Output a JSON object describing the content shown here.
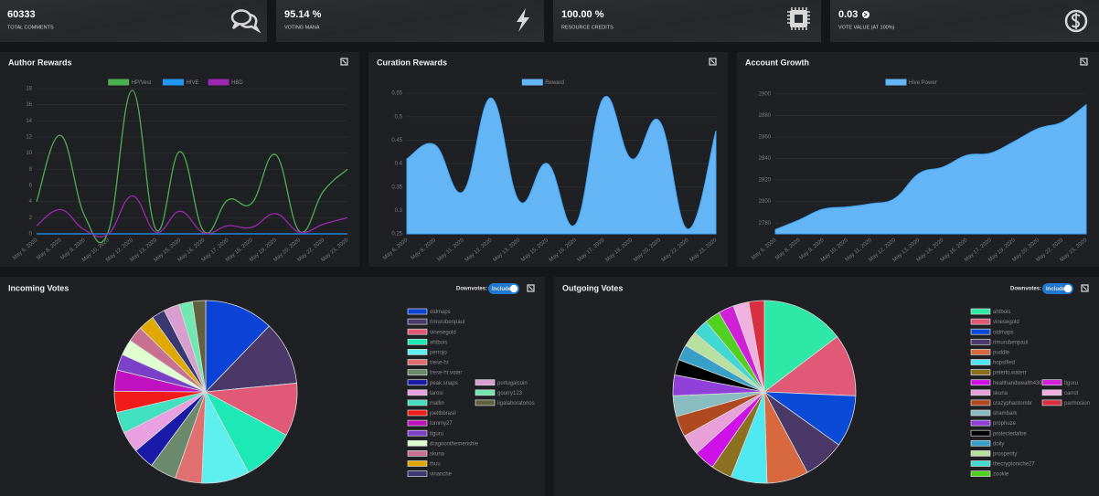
{
  "stats": [
    {
      "value": "60333",
      "label": "TOTAL COMMENTS"
    },
    {
      "value": "95.14 %",
      "label": "VOTING MANA"
    },
    {
      "value": "100.00 %",
      "label": "RESOURCE CREDITS"
    },
    {
      "value": "0.03",
      "label": "VOTE VALUE (AT 100%)"
    }
  ],
  "chart_data": [
    {
      "type": "line",
      "title": "Author Rewards",
      "categories": [
        "May 6, 2020",
        "May 8, 2020",
        "May 9, 2020",
        "May 10, 2020",
        "May 12, 2020",
        "May 13, 2020",
        "May 15, 2020",
        "May 16, 2020",
        "May 17, 2020",
        "May 18, 2020",
        "May 19, 2020",
        "May 20, 2020",
        "May 22, 2020",
        "May 23, 2020"
      ],
      "series": [
        {
          "name": "HP/Vest",
          "color": "#4caf50",
          "values": [
            4,
            12.2,
            2.3,
            0.3,
            17.8,
            0.5,
            10.2,
            0.3,
            4.2,
            3.8,
            9.8,
            0.3,
            5.3,
            8
          ]
        },
        {
          "name": "HIVE",
          "color": "#2196f3",
          "values": [
            0,
            0,
            0,
            0,
            0,
            0,
            0,
            0,
            0,
            0,
            0,
            0,
            0,
            0
          ]
        },
        {
          "name": "HBD",
          "color": "#9c27b0",
          "values": [
            1,
            3,
            0.5,
            0,
            4.7,
            0.2,
            2.8,
            0.1,
            1,
            0.8,
            2.5,
            0.2,
            1.2,
            2
          ]
        }
      ],
      "ylim": [
        0,
        18
      ],
      "yticks": [
        0,
        2,
        4,
        6,
        8,
        10,
        12,
        14,
        16,
        18
      ],
      "grid": true
    },
    {
      "type": "area",
      "title": "Curation Rewards",
      "categories": [
        "May 6, 2020",
        "May 8, 2020",
        "May 11, 2020",
        "May 12, 2020",
        "May 13, 2020",
        "May 15, 2020",
        "May 16, 2020",
        "May 17, 2020",
        "May 18, 2020",
        "May 20, 2020",
        "May 22, 2020",
        "May 23, 2020"
      ],
      "series": [
        {
          "name": "Reward",
          "color": "#64b5f6",
          "values": [
            0.41,
            0.44,
            0.34,
            0.54,
            0.32,
            0.4,
            0.27,
            0.54,
            0.41,
            0.49,
            0.26,
            0.47
          ]
        }
      ],
      "ylim": [
        0.25,
        0.56
      ],
      "yticks": [
        0.25,
        0.3,
        0.35,
        0.4,
        0.45,
        0.5,
        0.55
      ],
      "grid": true
    },
    {
      "type": "area",
      "title": "Account Growth",
      "categories": [
        "May 6, 2020",
        "May 8, 2020",
        "May 9, 2020",
        "May 10, 2020",
        "May 11, 2020",
        "May 12, 2020",
        "May 13, 2020",
        "May 14, 2020",
        "May 16, 2020",
        "May 17, 2020",
        "May 19, 2020",
        "May 20, 2020",
        "May 22, 2020",
        "May 23, 2020"
      ],
      "series": [
        {
          "name": "Hive Power",
          "color": "#64b5f6",
          "values": [
            2774,
            2783,
            2793,
            2795,
            2798,
            2803,
            2826,
            2832,
            2843,
            2845,
            2856,
            2868,
            2874,
            2890
          ]
        }
      ],
      "ylim": [
        2770,
        2905
      ],
      "yticks": [
        2780,
        2800,
        2820,
        2840,
        2860,
        2880,
        2900
      ],
      "grid": true
    },
    {
      "type": "pie",
      "title": "Incoming Votes",
      "toggle_label": "Downvotes:",
      "toggle_value": "Include",
      "categories": [
        "oldmaps",
        "rimurubenpaul",
        "vinesegold",
        "ahtbois",
        "perrojo",
        "trese-hr",
        "trese-hr.voter",
        "peak.snaps",
        "tarosi",
        "mallin",
        "joeltbbrasil",
        "tommy27",
        "ltguru",
        "dragoonthemenshie",
        "skuna",
        "thuu",
        "vinanche",
        "portugalcoin",
        "gourry123",
        "ligalaboratorios"
      ],
      "values": [
        13,
        12,
        10,
        10,
        9,
        5,
        5,
        4,
        4,
        4,
        4,
        4,
        3,
        3,
        3,
        3,
        2.5,
        3,
        2.5,
        2.5
      ],
      "colors": [
        "#0a43d6",
        "#4a3868",
        "#e05a78",
        "#1de9b6",
        "#5ef0ee",
        "#e07070",
        "#6b8a6b",
        "#1a1aa8",
        "#e8a0e0",
        "#40e0c0",
        "#f21b1b",
        "#c010c0",
        "#7a40c8",
        "#e0ffd0",
        "#c87090",
        "#e0a800",
        "#3a3870",
        "#d89ed0",
        "#70e8b0",
        "#606040"
      ]
    },
    {
      "type": "pie",
      "title": "Outgoing Votes",
      "toggle_label": "Downvotes:",
      "toggle_value": "Include",
      "categories": [
        "ahtbois",
        "vinesegold",
        "oldmaps",
        "rimurubenpaul",
        "puddle",
        "hopsified",
        "peterlo.waterr",
        "healthandwealth4304",
        "skuna",
        "crazyphantombr",
        "shambark",
        "prophuze",
        "protectedaltre",
        "doily",
        "prosperity",
        "thecryptoniche27",
        "zookie",
        "ltguru",
        "carrot",
        "parmosion"
      ],
      "values": [
        16,
        12,
        10,
        8,
        8,
        7,
        4,
        4,
        4,
        4,
        4,
        4,
        3,
        3,
        3,
        3,
        3,
        3,
        3,
        3
      ],
      "colors": [
        "#2ee8a8",
        "#e05a78",
        "#0a4ad6",
        "#4a3868",
        "#d8683e",
        "#50e8f0",
        "#8a7020",
        "#d010e8",
        "#e8a0d8",
        "#b04820",
        "#88bcc0",
        "#9040d8",
        "#000000",
        "#38a0c8",
        "#b8e0a0",
        "#40d8d0",
        "#50d020",
        "#d020d8",
        "#f0b0e0",
        "#d83040"
      ]
    }
  ]
}
